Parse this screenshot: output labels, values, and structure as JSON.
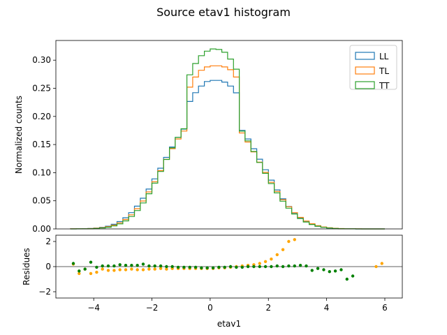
{
  "chart_data": [
    {
      "type": "histogram-step",
      "title": "Source etav1 histogram",
      "xlabel": "",
      "ylabel": "Normalized counts",
      "xlim": [
        -5.3,
        6.6
      ],
      "ylim": [
        0.0,
        0.335
      ],
      "yticks": [
        "0.00",
        "0.05",
        "0.10",
        "0.15",
        "0.20",
        "0.25",
        "0.30"
      ],
      "legend_position": "top-right",
      "bin_edges": [
        -4.8,
        -4.6,
        -4.4,
        -4.2,
        -4.0,
        -3.8,
        -3.6,
        -3.4,
        -3.2,
        -3.0,
        -2.8,
        -2.6,
        -2.4,
        -2.2,
        -2.0,
        -1.8,
        -1.6,
        -1.4,
        -1.2,
        -1.0,
        -0.8,
        -0.6,
        -0.4,
        -0.2,
        0.0,
        0.2,
        0.4,
        0.6,
        0.8,
        1.0,
        1.2,
        1.4,
        1.6,
        1.8,
        2.0,
        2.2,
        2.4,
        2.6,
        2.8,
        3.0,
        3.2,
        3.4,
        3.6,
        3.8,
        4.0,
        4.2,
        4.4,
        4.6,
        4.8,
        5.0,
        5.2,
        5.4,
        5.6,
        5.8,
        6.0
      ],
      "series": [
        {
          "name": "LL",
          "color": "#1f77b4",
          "values": [
            0.0001,
            0.0002,
            0.0004,
            0.0008,
            0.0015,
            0.0028,
            0.0049,
            0.0082,
            0.013,
            0.0198,
            0.0289,
            0.0405,
            0.0546,
            0.0709,
            0.0889,
            0.1079,
            0.1272,
            0.1457,
            0.1627,
            0.1774,
            0.2265,
            0.2422,
            0.254,
            0.262,
            0.264,
            0.264,
            0.261,
            0.254,
            0.242,
            0.1752,
            0.1599,
            0.1426,
            0.124,
            0.1052,
            0.0867,
            0.0693,
            0.0535,
            0.0398,
            0.0284,
            0.0195,
            0.0128,
            0.0081,
            0.0049,
            0.0028,
            0.0015,
            0.0008,
            0.0004,
            0.0002,
            0.0001,
            0.0,
            0.0,
            0.0,
            0.0,
            0.0
          ]
        },
        {
          "name": "TL",
          "color": "#ff7f0e",
          "values": [
            0.0001,
            0.0001,
            0.0003,
            0.0006,
            0.0012,
            0.0022,
            0.0039,
            0.0067,
            0.0108,
            0.0168,
            0.0251,
            0.036,
            0.0496,
            0.0658,
            0.084,
            0.1036,
            0.1236,
            0.1427,
            0.1599,
            0.174,
            0.252,
            0.27,
            0.282,
            0.288,
            0.29,
            0.29,
            0.288,
            0.283,
            0.27,
            0.1706,
            0.1545,
            0.137,
            0.1187,
            0.1005,
            0.0829,
            0.0666,
            0.052,
            0.0394,
            0.0289,
            0.0205,
            0.014,
            0.0092,
            0.0058,
            0.0035,
            0.002,
            0.0011,
            0.0006,
            0.0003,
            0.0001,
            0.0001,
            0.0,
            0.0,
            0.0,
            0.0
          ]
        },
        {
          "name": "TT",
          "color": "#2ca02c",
          "values": [
            0.0,
            0.0001,
            0.0002,
            0.0004,
            0.0008,
            0.0016,
            0.003,
            0.0053,
            0.0089,
            0.0143,
            0.0221,
            0.0326,
            0.0461,
            0.0625,
            0.0814,
            0.1021,
            0.1234,
            0.1441,
            0.1627,
            0.1781,
            0.274,
            0.294,
            0.308,
            0.316,
            0.32,
            0.319,
            0.314,
            0.302,
            0.284,
            0.1738,
            0.1566,
            0.1377,
            0.1181,
            0.0988,
            0.0806,
            0.064,
            0.0493,
            0.0368,
            0.0265,
            0.0184,
            0.0123,
            0.0079,
            0.0048,
            0.0028,
            0.0016,
            0.0008,
            0.0004,
            0.0002,
            0.0001,
            0.0,
            0.0,
            0.0,
            0.0,
            0.0
          ]
        }
      ]
    },
    {
      "type": "scatter",
      "title": "",
      "xlabel": "etav1",
      "ylabel": "Residues",
      "xlim": [
        -5.3,
        6.6
      ],
      "ylim": [
        -2.5,
        2.5
      ],
      "xticks": [
        "−4",
        "−2",
        "0",
        "2",
        "4",
        "6"
      ],
      "yticks": [
        "−2",
        "0",
        "2"
      ],
      "reference_line_y": 0,
      "series": [
        {
          "color": "#ffa500",
          "points": [
            [
              -4.7,
              0.2
            ],
            [
              -4.5,
              -0.55
            ],
            [
              -4.3,
              -0.2
            ],
            [
              -4.1,
              -0.55
            ],
            [
              -3.9,
              -0.45
            ],
            [
              -3.7,
              -0.2
            ],
            [
              -3.5,
              -0.3
            ],
            [
              -3.3,
              -0.3
            ],
            [
              -3.1,
              -0.25
            ],
            [
              -2.9,
              -0.25
            ],
            [
              -2.7,
              -0.2
            ],
            [
              -2.5,
              -0.25
            ],
            [
              -2.3,
              -0.25
            ],
            [
              -2.1,
              -0.2
            ],
            [
              -1.9,
              -0.2
            ],
            [
              -1.7,
              -0.15
            ],
            [
              -1.5,
              -0.2
            ],
            [
              -1.3,
              -0.15
            ],
            [
              -1.1,
              -0.15
            ],
            [
              -0.9,
              -0.15
            ],
            [
              -0.7,
              -0.15
            ],
            [
              -0.5,
              -0.15
            ],
            [
              -0.3,
              -0.15
            ],
            [
              -0.1,
              -0.15
            ],
            [
              0.1,
              -0.15
            ],
            [
              0.3,
              -0.1
            ],
            [
              0.5,
              -0.1
            ],
            [
              0.7,
              -0.05
            ],
            [
              0.9,
              0.0
            ],
            [
              1.1,
              0.05
            ],
            [
              1.3,
              0.1
            ],
            [
              1.5,
              0.15
            ],
            [
              1.7,
              0.25
            ],
            [
              1.9,
              0.4
            ],
            [
              2.1,
              0.6
            ],
            [
              2.3,
              0.95
            ],
            [
              2.5,
              1.35
            ],
            [
              2.7,
              2.0
            ],
            [
              2.9,
              2.15
            ],
            [
              5.7,
              0.0
            ],
            [
              5.9,
              0.25
            ]
          ]
        },
        {
          "color": "#008000",
          "points": [
            [
              -4.7,
              0.25
            ],
            [
              -4.5,
              -0.35
            ],
            [
              -4.3,
              -0.2
            ],
            [
              -4.1,
              0.35
            ],
            [
              -3.9,
              -0.05
            ],
            [
              -3.7,
              0.05
            ],
            [
              -3.5,
              0.05
            ],
            [
              -3.3,
              0.05
            ],
            [
              -3.1,
              0.15
            ],
            [
              -2.9,
              0.1
            ],
            [
              -2.7,
              0.1
            ],
            [
              -2.5,
              0.1
            ],
            [
              -2.3,
              0.2
            ],
            [
              -2.1,
              0.05
            ],
            [
              -1.9,
              0.05
            ],
            [
              -1.7,
              0.05
            ],
            [
              -1.5,
              0.0
            ],
            [
              -1.3,
              0.0
            ],
            [
              -1.1,
              -0.05
            ],
            [
              -0.9,
              -0.05
            ],
            [
              -0.7,
              -0.05
            ],
            [
              -0.5,
              -0.05
            ],
            [
              -0.3,
              -0.1
            ],
            [
              -0.1,
              -0.1
            ],
            [
              0.1,
              -0.1
            ],
            [
              0.3,
              -0.05
            ],
            [
              0.5,
              -0.05
            ],
            [
              0.7,
              0.0
            ],
            [
              0.9,
              -0.05
            ],
            [
              1.1,
              -0.05
            ],
            [
              1.3,
              0.0
            ],
            [
              1.5,
              0.0
            ],
            [
              1.7,
              0.0
            ],
            [
              1.9,
              0.0
            ],
            [
              2.1,
              0.0
            ],
            [
              2.3,
              0.05
            ],
            [
              2.5,
              0.0
            ],
            [
              2.7,
              0.05
            ],
            [
              2.9,
              0.05
            ],
            [
              3.1,
              0.1
            ],
            [
              3.3,
              0.05
            ],
            [
              3.5,
              -0.3
            ],
            [
              3.7,
              -0.15
            ],
            [
              3.9,
              -0.25
            ],
            [
              4.1,
              -0.4
            ],
            [
              4.3,
              -0.35
            ],
            [
              4.5,
              -0.25
            ],
            [
              4.7,
              -1.0
            ],
            [
              4.9,
              -0.75
            ]
          ]
        }
      ]
    }
  ]
}
